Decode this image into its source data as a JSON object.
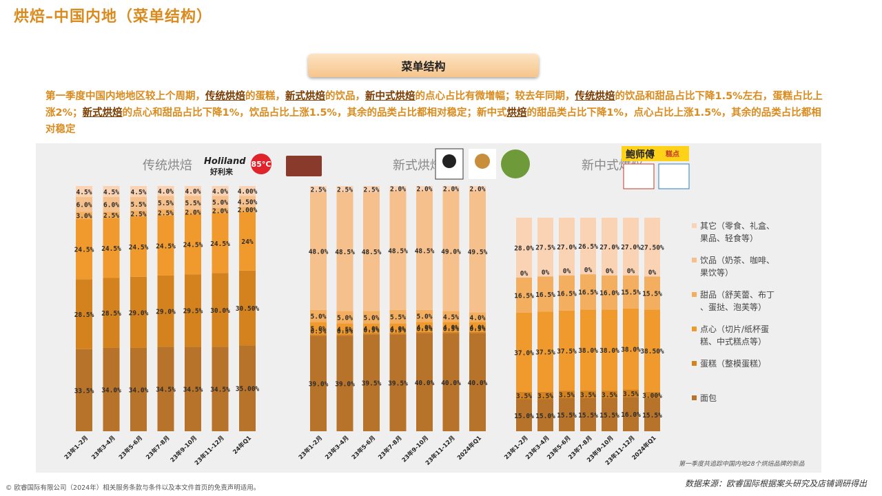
{
  "page_title": "烘焙–中国内地（菜单结构）",
  "section_tab": "菜单结构",
  "summary_parts": [
    {
      "t": "第一季度中国内地地区较上个周期，"
    },
    {
      "t": "传统烘焙",
      "hl": true
    },
    {
      "t": "的蛋糕，"
    },
    {
      "t": "新式烘焙",
      "hl": true
    },
    {
      "t": "的饮品，"
    },
    {
      "t": "新中式烘焙",
      "hl": true
    },
    {
      "t": "的点心占比有微增幅；较去年同期，"
    },
    {
      "t": "传统烘焙",
      "hl": true
    },
    {
      "t": "的饮品和甜品占比下降1.5%左右，蛋糕占比上涨2%；"
    },
    {
      "t": "新式烘焙",
      "hl": true
    },
    {
      "t": "的点心和甜品占比下降1%，饮品占比上涨1.5%，其余的品类占比都相对稳定；新中式"
    },
    {
      "t": "烘焙",
      "hl": true
    },
    {
      "t": "的甜品类占比下降1%，点心占比上涨1.5%，其余的品类占比都相对稳定"
    }
  ],
  "colors": {
    "面包": "#b8732a",
    "蛋糕": "#d4821e",
    "点心": "#f09a2d",
    "甜品": "#f3ae5f",
    "饮品": "#f6c08c",
    "其它": "#fad3b4"
  },
  "legend": [
    {
      "key": "其它",
      "text": "其它（零食、礼盒、果品、轻食等）"
    },
    {
      "key": "饮品",
      "text": "饮品（奶茶、咖啡、果饮等）"
    },
    {
      "key": "甜品",
      "text": "甜品（舒芙蕾、布丁、蛋挞、泡芙等）"
    },
    {
      "key": "点心",
      "text": "点心（切片/纸杯蛋糕、中式糕点等）"
    },
    {
      "key": "蛋糕",
      "text": "蛋糕（整模蛋糕）"
    },
    {
      "key": "面包",
      "text": "面包"
    }
  ],
  "brands": {
    "traditional": [
      "Holiland",
      "好利来",
      "85°C"
    ],
    "chinese": [
      "鲍师傅",
      "糕点"
    ]
  },
  "chart_data": [
    {
      "type": "bar",
      "stacked": true,
      "title": "传统烘焙",
      "categories": [
        "23年1-2月",
        "23年3-4月",
        "23年5-6月",
        "23年7-8月",
        "23年9-10月",
        "23年11-12月",
        "24年Q1"
      ],
      "series": [
        {
          "name": "面包",
          "values": [
            33.5,
            34.0,
            34.0,
            34.5,
            34.5,
            34.5,
            35.0
          ],
          "labels": [
            "33.5%",
            "34.0%",
            "34.0%",
            "34.5%",
            "34.5%",
            "34.5%",
            "35.00%"
          ]
        },
        {
          "name": "蛋糕",
          "values": [
            28.5,
            28.5,
            29.0,
            29.0,
            29.5,
            30.0,
            30.5
          ],
          "labels": [
            "28.5%",
            "28.5%",
            "29.0%",
            "29.0%",
            "29.5%",
            "30.0%",
            "30.50%"
          ]
        },
        {
          "name": "点心",
          "values": [
            24.5,
            24.5,
            24.5,
            24.5,
            24.5,
            24.5,
            24.0
          ],
          "labels": [
            "24.5%",
            "24.5%",
            "24.5%",
            "24.5%",
            "24.5%",
            "24.5%",
            "24%"
          ]
        },
        {
          "name": "甜品",
          "values": [
            3.0,
            2.5,
            2.5,
            2.5,
            2.0,
            2.0,
            2.0
          ],
          "labels": [
            "3.0%",
            "2.5%",
            "2.5%",
            "2.5%",
            "2.0%",
            "2.0%",
            "2.00%"
          ]
        },
        {
          "name": "饮品",
          "values": [
            6.0,
            6.0,
            5.5,
            5.5,
            5.5,
            5.0,
            4.5
          ],
          "labels": [
            "6.0%",
            "6.0%",
            "5.5%",
            "5.5%",
            "5.5%",
            "5.0%",
            "4.50%"
          ]
        },
        {
          "name": "其它",
          "values": [
            4.5,
            4.5,
            4.5,
            4.0,
            4.0,
            4.0,
            4.0
          ],
          "labels": [
            "4.5%",
            "4.5%",
            "4.5%",
            "4.0%",
            "4.0%",
            "4.0%",
            "4.00%"
          ]
        }
      ]
    },
    {
      "type": "bar",
      "stacked": true,
      "title": "新式烘焙",
      "categories": [
        "23年1-2月",
        "23年3-4月",
        "23年5-6月",
        "23年7-8月",
        "23年9-10月",
        "23年11-12月",
        "2024年Q1"
      ],
      "series": [
        {
          "name": "面包",
          "values": [
            39.0,
            39.0,
            39.5,
            39.5,
            40.0,
            40.0,
            40.0
          ],
          "labels": [
            "39.0%",
            "39.0%",
            "39.5%",
            "39.5%",
            "40.0%",
            "40.0%",
            "40.0%"
          ]
        },
        {
          "name": "蛋糕",
          "values": [
            0.5,
            0.5,
            0.5,
            0.5,
            0.5,
            0.5,
            0.5
          ],
          "labels": [
            "0.5%",
            "0.5%",
            "0.5%",
            "0.5%",
            "0.5%",
            "0.5%",
            "0.5%"
          ]
        },
        {
          "name": "点心",
          "values": [
            5.0,
            4.5,
            4.0,
            4.0,
            4.0,
            4.0,
            4.0
          ],
          "labels": [
            "5.0%",
            "4.5%",
            "4.0%",
            "4.0%",
            "4.0%",
            "4.0%",
            "4.0%"
          ]
        },
        {
          "name": "甜品",
          "values": [
            5.0,
            5.0,
            5.0,
            5.5,
            5.0,
            4.5,
            4.0
          ],
          "labels": [
            "5.0%",
            "5.0%",
            "5.0%",
            "5.5%",
            "5.0%",
            "4.5%",
            "4.0%"
          ]
        },
        {
          "name": "饮品",
          "values": [
            48.0,
            48.5,
            48.5,
            48.5,
            48.5,
            49.0,
            49.5
          ],
          "labels": [
            "48.0%",
            "48.5%",
            "48.5%",
            "48.5%",
            "48.5%",
            "49.0%",
            "49.5%"
          ]
        },
        {
          "name": "其它",
          "values": [
            2.5,
            2.5,
            2.5,
            2.0,
            2.0,
            2.0,
            2.0
          ],
          "labels": [
            "2.5%",
            "2.5%",
            "2.5%",
            "2.0%",
            "2.0%",
            "2.0%",
            "2.0%"
          ]
        }
      ]
    },
    {
      "type": "bar",
      "stacked": true,
      "title": "新中式烘焙",
      "categories": [
        "23年1-2月",
        "23年3-4月",
        "23年5-6月",
        "23年7-8月",
        "23年9-10月",
        "23年11-12月",
        "2024年Q1"
      ],
      "series": [
        {
          "name": "面包",
          "values": [
            15.0,
            15.0,
            15.5,
            15.5,
            15.5,
            16.0,
            15.5
          ],
          "labels": [
            "15.0%",
            "15.0%",
            "15.5%",
            "15.5%",
            "15.5%",
            "16.0%",
            "15.5%"
          ]
        },
        {
          "name": "蛋糕",
          "values": [
            3.5,
            3.5,
            3.5,
            3.5,
            3.5,
            3.5,
            3.0
          ],
          "labels": [
            "3.5%",
            "3.5%",
            "3.5%",
            "3.5%",
            "3.5%",
            "3.5%",
            "3.00%"
          ]
        },
        {
          "name": "点心",
          "values": [
            37.0,
            37.5,
            37.5,
            38.0,
            38.0,
            38.0,
            38.5
          ],
          "labels": [
            "37.0%",
            "37.5%",
            "37.5%",
            "38.0%",
            "38.0%",
            "38.0%",
            "38.50%"
          ]
        },
        {
          "name": "甜品",
          "values": [
            16.5,
            16.5,
            16.5,
            16.5,
            16.0,
            15.5,
            15.5
          ],
          "labels": [
            "16.5%",
            "16.5%",
            "16.5%",
            "16.5%",
            "16.0%",
            "15.5%",
            "15.5%"
          ]
        },
        {
          "name": "饮品",
          "values": [
            0,
            0,
            0,
            0,
            0,
            0,
            0
          ],
          "labels": [
            "0%",
            "0%",
            "0%",
            "0%",
            "0%",
            "0%",
            "0%"
          ]
        },
        {
          "name": "其它",
          "values": [
            28.0,
            27.5,
            27.0,
            26.5,
            27.0,
            27.0,
            27.5
          ],
          "labels": [
            "28.0%",
            "27.5%",
            "27.0%",
            "26.5%",
            "27.0%",
            "27.0%",
            "27.50%"
          ]
        }
      ]
    }
  ],
  "footnote": "第一季度共追踪中国内地28个烘焙品牌的新品",
  "footer_copyright": "© 欧睿国际有限公司（2024年）相关服务条款与条件以及本文件首页的免责声明适用。",
  "footer_source": "数据来源：欧睿国际根据案头研究及店铺调研得出"
}
